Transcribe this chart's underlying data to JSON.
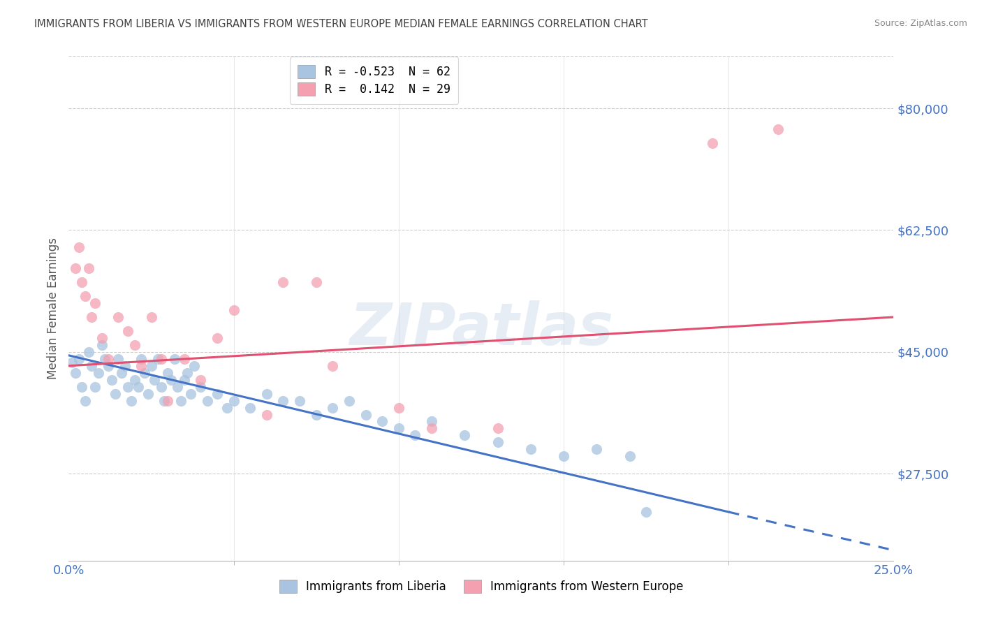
{
  "title": "IMMIGRANTS FROM LIBERIA VS IMMIGRANTS FROM WESTERN EUROPE MEDIAN FEMALE EARNINGS CORRELATION CHART",
  "source": "Source: ZipAtlas.com",
  "ylabel": "Median Female Earnings",
  "yticks": [
    27500,
    45000,
    62500,
    80000
  ],
  "ytick_labels": [
    "$27,500",
    "$45,000",
    "$62,500",
    "$80,000"
  ],
  "xtick_positions": [
    0.0,
    0.05,
    0.1,
    0.15,
    0.2,
    0.25
  ],
  "xtick_labels": [
    "",
    "",
    "",
    "",
    "",
    ""
  ],
  "xlim": [
    0.0,
    0.25
  ],
  "ylim": [
    15000,
    87500
  ],
  "legend_entries": [
    {
      "label": "R = -0.523  N = 62",
      "color": "#a8c4e0"
    },
    {
      "label": "R =  0.142  N = 29",
      "color": "#f4a0b0"
    }
  ],
  "legend_bottom": [
    {
      "label": "Immigrants from Liberia",
      "color": "#a8c4e0"
    },
    {
      "label": "Immigrants from Western Europe",
      "color": "#f4a0b0"
    }
  ],
  "blue_scatter": [
    [
      0.001,
      43500
    ],
    [
      0.002,
      42000
    ],
    [
      0.003,
      44000
    ],
    [
      0.004,
      40000
    ],
    [
      0.005,
      38000
    ],
    [
      0.006,
      45000
    ],
    [
      0.007,
      43000
    ],
    [
      0.008,
      40000
    ],
    [
      0.009,
      42000
    ],
    [
      0.01,
      46000
    ],
    [
      0.011,
      44000
    ],
    [
      0.012,
      43000
    ],
    [
      0.013,
      41000
    ],
    [
      0.014,
      39000
    ],
    [
      0.015,
      44000
    ],
    [
      0.016,
      42000
    ],
    [
      0.017,
      43000
    ],
    [
      0.018,
      40000
    ],
    [
      0.019,
      38000
    ],
    [
      0.02,
      41000
    ],
    [
      0.021,
      40000
    ],
    [
      0.022,
      44000
    ],
    [
      0.023,
      42000
    ],
    [
      0.024,
      39000
    ],
    [
      0.025,
      43000
    ],
    [
      0.026,
      41000
    ],
    [
      0.027,
      44000
    ],
    [
      0.028,
      40000
    ],
    [
      0.029,
      38000
    ],
    [
      0.03,
      42000
    ],
    [
      0.031,
      41000
    ],
    [
      0.032,
      44000
    ],
    [
      0.033,
      40000
    ],
    [
      0.034,
      38000
    ],
    [
      0.035,
      41000
    ],
    [
      0.036,
      42000
    ],
    [
      0.037,
      39000
    ],
    [
      0.038,
      43000
    ],
    [
      0.04,
      40000
    ],
    [
      0.042,
      38000
    ],
    [
      0.045,
      39000
    ],
    [
      0.048,
      37000
    ],
    [
      0.05,
      38000
    ],
    [
      0.055,
      37000
    ],
    [
      0.06,
      39000
    ],
    [
      0.065,
      38000
    ],
    [
      0.07,
      38000
    ],
    [
      0.075,
      36000
    ],
    [
      0.08,
      37000
    ],
    [
      0.085,
      38000
    ],
    [
      0.09,
      36000
    ],
    [
      0.095,
      35000
    ],
    [
      0.1,
      34000
    ],
    [
      0.105,
      33000
    ],
    [
      0.11,
      35000
    ],
    [
      0.12,
      33000
    ],
    [
      0.13,
      32000
    ],
    [
      0.14,
      31000
    ],
    [
      0.15,
      30000
    ],
    [
      0.16,
      31000
    ],
    [
      0.17,
      30000
    ],
    [
      0.175,
      22000
    ]
  ],
  "pink_scatter": [
    [
      0.002,
      57000
    ],
    [
      0.003,
      60000
    ],
    [
      0.004,
      55000
    ],
    [
      0.005,
      53000
    ],
    [
      0.006,
      57000
    ],
    [
      0.007,
      50000
    ],
    [
      0.008,
      52000
    ],
    [
      0.01,
      47000
    ],
    [
      0.012,
      44000
    ],
    [
      0.015,
      50000
    ],
    [
      0.018,
      48000
    ],
    [
      0.02,
      46000
    ],
    [
      0.022,
      43000
    ],
    [
      0.025,
      50000
    ],
    [
      0.028,
      44000
    ],
    [
      0.03,
      38000
    ],
    [
      0.035,
      44000
    ],
    [
      0.04,
      41000
    ],
    [
      0.045,
      47000
    ],
    [
      0.05,
      51000
    ],
    [
      0.06,
      36000
    ],
    [
      0.065,
      55000
    ],
    [
      0.075,
      55000
    ],
    [
      0.08,
      43000
    ],
    [
      0.1,
      37000
    ],
    [
      0.11,
      34000
    ],
    [
      0.13,
      34000
    ],
    [
      0.195,
      75000
    ],
    [
      0.215,
      77000
    ]
  ],
  "blue_line_solid": {
    "x0": 0.0,
    "y0": 44500,
    "x1": 0.2,
    "y1": 22000
  },
  "blue_line_dashed": {
    "x0": 0.2,
    "y0": 22000,
    "x1": 0.25,
    "y1": 16500
  },
  "pink_line": {
    "x0": 0.0,
    "y0": 43000,
    "x1": 0.25,
    "y1": 50000
  },
  "watermark": "ZIPatlas",
  "bg_color": "#ffffff",
  "grid_color": "#cccccc",
  "scatter_blue": "#a8c4e0",
  "scatter_pink": "#f4a0b0",
  "line_blue": "#4472c4",
  "line_pink": "#e05070",
  "title_color": "#404040",
  "tick_label_color": "#4472c4"
}
